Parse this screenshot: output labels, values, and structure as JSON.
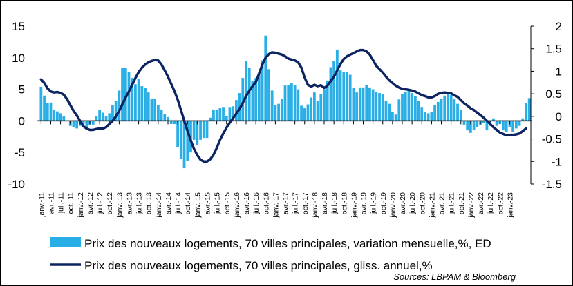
{
  "chart_data": {
    "type": "bar+line",
    "left_axis": {
      "ylim": [
        -10,
        15
      ],
      "ticks": [
        -10,
        -5,
        0,
        5,
        10,
        15
      ]
    },
    "right_axis": {
      "ylim": [
        -1.5,
        2
      ],
      "ticks": [
        -1.5,
        -1,
        -0.5,
        0,
        0.5,
        1,
        1.5,
        2
      ]
    },
    "x_start": "2011-01",
    "x_tick_labels": [
      "janv.-11",
      "avr.-11",
      "juil.-11",
      "oct.-11",
      "janv.-12",
      "avr.-12",
      "juil.-12",
      "oct.-12",
      "janv.-13",
      "avr.-13",
      "juil.-13",
      "oct.-13",
      "janv.-14",
      "avr.-14",
      "juil.-14",
      "oct.-14",
      "janv.-15",
      "avr.-15",
      "juil.-15",
      "oct.-15",
      "janv.-16",
      "avr.-16",
      "juil.-16",
      "oct.-16",
      "janv.-17",
      "avr.-17",
      "juil.-17",
      "oct.-17",
      "janv.-18",
      "avr.-18",
      "juil.-18",
      "oct.-18",
      "janv.-19",
      "avr.-19",
      "juil.-19",
      "oct.-19",
      "janv.-20",
      "avr.-20",
      "juil.-20",
      "oct.-20",
      "janv.-21",
      "avr.-21",
      "juil.-21",
      "oct.-21",
      "janv.-22",
      "avr.-22",
      "juil.-22",
      "oct.-22",
      "janv.-23"
    ],
    "series": [
      {
        "name": "Prix des nouveaux logements, 70 villes principales, variation mensuelle,%, ED",
        "kind": "bar",
        "axis": "left",
        "color": "#29aee6",
        "values": [
          5.4,
          4.0,
          2.8,
          2.9,
          1.8,
          1.5,
          1.2,
          0.8,
          0,
          -0.8,
          -1,
          -1.2,
          -0.8,
          -0.5,
          -1.4,
          -0.6,
          -0.6,
          0.8,
          1.7,
          1.3,
          0.7,
          1.2,
          2.5,
          3.2,
          4.8,
          8.4,
          8.4,
          7.7,
          6.8,
          5.8,
          6.6,
          5.5,
          5.2,
          4.5,
          3.5,
          3.5,
          2.5,
          1.8,
          1.1,
          0.6,
          -0.5,
          -0.5,
          -4.2,
          -6.0,
          -7.5,
          -6.3,
          -5.0,
          -3.0,
          -3.8,
          -3.0,
          -2.7,
          -2.7,
          0.5,
          1.8,
          1.8,
          2.0,
          2.2,
          0.8,
          2.2,
          2.3,
          3.3,
          4.4,
          6.8,
          9.5,
          8.4,
          6.3,
          6.8,
          7.4,
          9.6,
          13.5,
          8.2,
          4.8,
          2.5,
          2.7,
          3.5,
          5.6,
          5.7,
          6.0,
          5.7,
          5.0,
          2.4,
          2.0,
          2.6,
          3.7,
          4.5,
          3.2,
          4.2,
          5.0,
          6.4,
          8.5,
          9.5,
          11.3,
          8.0,
          7.7,
          7.8,
          7.3,
          5.2,
          4.5,
          5.3,
          5.3,
          5.7,
          5.3,
          5.0,
          4.6,
          4.4,
          4.2,
          3.2,
          2.7,
          1.4,
          1.0,
          3.4,
          4.2,
          4.6,
          5.0,
          4.4,
          3.9,
          3.2,
          2.2,
          1.4,
          1.2,
          1.4,
          2.5,
          3.0,
          3.5,
          4.0,
          4.2,
          4.1,
          3.5,
          2.7,
          1.7,
          -0.6,
          -1.5,
          -1.9,
          -1.4,
          -1.0,
          -0.6,
          -0.4,
          -1.5,
          -0.8,
          0.4,
          -0.8,
          -0.5,
          -1.5,
          -1.7,
          -1.0,
          -1.7,
          -1.2,
          -0.8,
          0.4,
          2.8,
          3.6
        ]
      },
      {
        "name": "Prix des nouveaux logements, 70 villes principales, gliss. annuel,%",
        "kind": "line",
        "axis": "right",
        "color": "#0c2461",
        "values": [
          0.82,
          0.74,
          0.62,
          0.55,
          0.53,
          0.54,
          0.52,
          0.48,
          0.38,
          0.25,
          0.12,
          0.02,
          -0.1,
          -0.22,
          -0.27,
          -0.3,
          -0.3,
          -0.28,
          -0.27,
          -0.27,
          -0.24,
          -0.17,
          -0.1,
          0.0,
          0.12,
          0.27,
          0.42,
          0.55,
          0.7,
          0.85,
          0.98,
          1.08,
          1.15,
          1.2,
          1.23,
          1.25,
          1.24,
          1.15,
          1.02,
          0.88,
          0.72,
          0.56,
          0.37,
          0.14,
          -0.1,
          -0.32,
          -0.53,
          -0.72,
          -0.86,
          -0.96,
          -1.0,
          -1.0,
          -0.95,
          -0.85,
          -0.7,
          -0.52,
          -0.38,
          -0.25,
          -0.14,
          -0.04,
          0.06,
          0.17,
          0.3,
          0.45,
          0.57,
          0.67,
          0.76,
          0.95,
          1.15,
          1.3,
          1.38,
          1.42,
          1.41,
          1.39,
          1.37,
          1.33,
          1.28,
          1.26,
          1.24,
          1.2,
          1.08,
          0.86,
          0.7,
          0.66,
          0.7,
          0.67,
          0.69,
          0.63,
          0.68,
          0.78,
          0.88,
          1.02,
          1.16,
          1.27,
          1.33,
          1.37,
          1.4,
          1.44,
          1.47,
          1.47,
          1.44,
          1.37,
          1.25,
          1.12,
          1.05,
          0.97,
          0.88,
          0.8,
          0.74,
          0.68,
          0.64,
          0.61,
          0.6,
          0.59,
          0.57,
          0.55,
          0.51,
          0.47,
          0.45,
          0.42,
          0.42,
          0.45,
          0.5,
          0.52,
          0.53,
          0.52,
          0.51,
          0.47,
          0.43,
          0.36,
          0.29,
          0.24,
          0.18,
          0.14,
          0.08,
          0.03,
          -0.03,
          -0.1,
          -0.17,
          -0.24,
          -0.3,
          -0.36,
          -0.39,
          -0.42,
          -0.41,
          -0.41,
          -0.4,
          -0.38,
          -0.33,
          -0.27
        ]
      }
    ]
  },
  "legend": {
    "bar_label": "Prix des nouveaux logements, 70 villes principales, variation mensuelle,%, ED",
    "line_label": "Prix des nouveaux logements, 70 villes principales, gliss. annuel,%"
  },
  "source": "Sources: LBPAM & Bloomberg"
}
